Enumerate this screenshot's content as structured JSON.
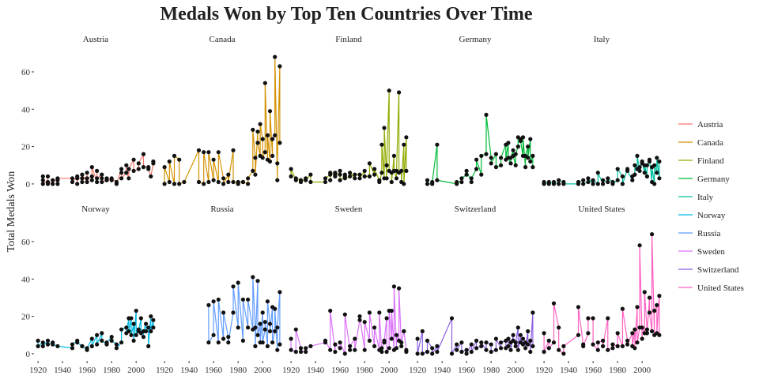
{
  "chart_data": {
    "type": "line",
    "title": "Medals Won by Top Ten Countries Over Time",
    "xlabel": "",
    "ylabel": "Total Medals Won",
    "x_ticks": [
      1920,
      1940,
      1960,
      1980,
      2000
    ],
    "y_ticks": [
      0,
      20,
      40,
      60
    ],
    "xlim": [
      1918,
      2016
    ],
    "ylim": [
      -3,
      71
    ],
    "grid": false,
    "legend_position": "right",
    "facet_layout": {
      "rows": 2,
      "cols": 5
    },
    "series": [
      {
        "name": "Austria",
        "color": "#F8766D",
        "x": [
          1924,
          1924,
          1924,
          1928,
          1928,
          1928,
          1932,
          1932,
          1936,
          1936,
          1936,
          1948,
          1948,
          1952,
          1952,
          1952,
          1956,
          1956,
          1956,
          1960,
          1960,
          1960,
          1964,
          1964,
          1964,
          1968,
          1968,
          1968,
          1972,
          1972,
          1972,
          1976,
          1976,
          1976,
          1980,
          1980,
          1984,
          1984,
          1988,
          1988,
          1988,
          1992,
          1992,
          1992,
          1994,
          1994,
          1998,
          1998,
          2002,
          2002,
          2006,
          2006,
          2010,
          2010,
          2012,
          2014,
          2014
        ],
        "y": [
          4,
          0,
          2,
          0,
          4,
          1,
          0,
          2,
          2,
          0,
          3,
          3,
          1,
          4,
          0,
          3,
          3,
          1,
          5,
          1,
          6,
          3,
          4,
          2,
          9,
          1,
          7,
          3,
          5,
          3,
          1,
          2,
          2,
          3,
          2,
          3,
          1,
          0,
          8,
          6,
          3,
          6,
          10,
          6,
          3,
          8,
          13,
          7,
          8,
          11,
          16,
          9,
          9,
          8,
          4,
          11,
          12
        ]
      },
      {
        "name": "Canada",
        "color": "#D39200",
        "x": [
          1920,
          1920,
          1924,
          1924,
          1928,
          1928,
          1932,
          1932,
          1936,
          1948,
          1948,
          1952,
          1952,
          1956,
          1956,
          1960,
          1960,
          1964,
          1964,
          1968,
          1968,
          1972,
          1972,
          1976,
          1976,
          1980,
          1980,
          1984,
          1984,
          1988,
          1988,
          1992,
          1992,
          1994,
          1994,
          1996,
          1996,
          1998,
          1998,
          2000,
          2000,
          2002,
          2002,
          2004,
          2004,
          2006,
          2006,
          2008,
          2008,
          2010,
          2010,
          2012,
          2012,
          2014,
          2014
        ],
        "y": [
          0,
          9,
          1,
          12,
          0,
          15,
          13,
          0,
          1,
          18,
          1,
          0,
          17,
          1,
          17,
          2,
          13,
          1,
          17,
          3,
          0,
          5,
          1,
          18,
          1,
          0,
          1,
          1,
          1,
          0,
          3,
          7,
          29,
          14,
          5,
          28,
          22,
          15,
          32,
          24,
          14,
          17,
          54,
          13,
          26,
          12,
          39,
          15,
          24,
          26,
          68,
          2,
          11,
          63,
          22
        ]
      },
      {
        "name": "Finland",
        "color": "#93AA00",
        "x": [
          1920,
          1920,
          1924,
          1924,
          1928,
          1928,
          1932,
          1932,
          1936,
          1936,
          1948,
          1948,
          1952,
          1952,
          1952,
          1956,
          1956,
          1956,
          1960,
          1960,
          1960,
          1964,
          1964,
          1964,
          1968,
          1968,
          1972,
          1972,
          1976,
          1976,
          1980,
          1980,
          1984,
          1984,
          1988,
          1988,
          1992,
          1992,
          1994,
          1994,
          1996,
          1996,
          1998,
          1998,
          2000,
          2000,
          2002,
          2002,
          2004,
          2004,
          2006,
          2006,
          2008,
          2008,
          2010,
          2010,
          2012,
          2012,
          2014,
          2014
        ],
        "y": [
          4,
          8,
          2,
          3,
          2,
          1,
          3,
          2,
          5,
          1,
          1,
          3,
          5,
          2,
          6,
          5,
          4,
          6,
          5,
          7,
          2,
          4,
          5,
          3,
          4,
          6,
          3,
          5,
          5,
          3,
          7,
          4,
          4,
          11,
          5,
          8,
          2,
          1,
          6,
          21,
          3,
          30,
          3,
          10,
          50,
          7,
          6,
          1,
          15,
          7,
          3,
          7,
          49,
          6,
          7,
          1,
          21,
          0,
          25,
          7
        ]
      },
      {
        "name": "Germany",
        "color": "#00BA38",
        "x": [
          1928,
          1928,
          1932,
          1932,
          1936,
          1936,
          1952,
          1952,
          1956,
          1956,
          1960,
          1960,
          1964,
          1964,
          1968,
          1968,
          1972,
          1972,
          1976,
          1976,
          1980,
          1980,
          1984,
          1984,
          1988,
          1988,
          1992,
          1992,
          1994,
          1994,
          1996,
          1996,
          1998,
          1998,
          2000,
          2000,
          2002,
          2002,
          2004,
          2004,
          2006,
          2006,
          2008,
          2008,
          2010,
          2010,
          2012,
          2012,
          2014,
          2014
        ],
        "y": [
          2,
          0,
          0,
          1,
          21,
          2,
          0,
          1,
          1,
          3,
          5,
          7,
          1,
          3,
          8,
          13,
          5,
          15,
          16,
          37,
          14,
          11,
          16,
          9,
          10,
          14,
          21,
          13,
          22,
          14,
          11,
          14,
          18,
          15,
          10,
          16,
          20,
          25,
          24,
          23,
          15,
          25,
          9,
          15,
          20,
          14,
          24,
          12,
          15,
          9
        ]
      },
      {
        "name": "Italy",
        "color": "#00C19F",
        "x": [
          1920,
          1920,
          1924,
          1924,
          1928,
          1928,
          1932,
          1932,
          1936,
          1936,
          1948,
          1948,
          1952,
          1952,
          1956,
          1956,
          1960,
          1960,
          1964,
          1964,
          1968,
          1968,
          1972,
          1972,
          1976,
          1976,
          1980,
          1980,
          1984,
          1984,
          1988,
          1988,
          1992,
          1992,
          1994,
          1994,
          1996,
          1996,
          1998,
          1998,
          2000,
          2000,
          2002,
          2002,
          2004,
          2004,
          2006,
          2006,
          2008,
          2008,
          2010,
          2010,
          2012,
          2012,
          2014,
          2014
        ],
        "y": [
          0,
          1,
          0,
          1,
          0,
          1,
          0,
          2,
          1,
          0,
          0,
          1,
          2,
          0,
          1,
          3,
          0,
          2,
          0,
          6,
          0,
          2,
          1,
          3,
          1,
          0,
          2,
          8,
          4,
          0,
          8,
          7,
          2,
          4,
          5,
          10,
          8,
          15,
          7,
          9,
          11,
          12,
          6,
          10,
          4,
          10,
          12,
          13,
          1,
          9,
          0,
          10,
          6,
          14,
          3,
          12
        ]
      },
      {
        "name": "Norway",
        "color": "#00B9E3",
        "x": [
          1920,
          1920,
          1924,
          1924,
          1928,
          1928,
          1932,
          1932,
          1936,
          1948,
          1948,
          1952,
          1952,
          1956,
          1956,
          1960,
          1960,
          1964,
          1964,
          1968,
          1968,
          1972,
          1972,
          1976,
          1976,
          1980,
          1980,
          1984,
          1984,
          1988,
          1988,
          1992,
          1992,
          1994,
          1994,
          1996,
          1996,
          1998,
          1998,
          2000,
          2000,
          2002,
          2002,
          2004,
          2004,
          2006,
          2006,
          2008,
          2008,
          2010,
          2010,
          2012,
          2012,
          2014,
          2014
        ],
        "y": [
          7,
          4,
          6,
          4,
          7,
          5,
          6,
          5,
          4,
          3,
          5,
          7,
          6,
          4,
          4,
          2,
          3,
          8,
          4,
          10,
          5,
          11,
          7,
          5,
          6,
          9,
          7,
          5,
          3,
          6,
          13,
          14,
          11,
          19,
          12,
          19,
          10,
          16,
          7,
          23,
          10,
          13,
          12,
          19,
          11,
          9,
          12,
          16,
          12,
          14,
          4,
          20,
          12,
          18,
          14
        ]
      },
      {
        "name": "Russia",
        "color": "#619CFF",
        "x": [
          1956,
          1956,
          1960,
          1960,
          1964,
          1964,
          1968,
          1968,
          1972,
          1972,
          1976,
          1976,
          1980,
          1980,
          1984,
          1984,
          1988,
          1988,
          1992,
          1992,
          1994,
          1994,
          1996,
          1996,
          1998,
          1998,
          2000,
          2000,
          2002,
          2002,
          2004,
          2004,
          2006,
          2006,
          2008,
          2008,
          2010,
          2010,
          2012,
          2012,
          2014,
          2014
        ],
        "y": [
          26,
          6,
          10,
          28,
          6,
          29,
          8,
          22,
          9,
          6,
          22,
          36,
          14,
          38,
          7,
          29,
          14,
          29,
          13,
          41,
          14,
          4,
          39,
          10,
          16,
          6,
          22,
          6,
          13,
          17,
          4,
          28,
          16,
          12,
          25,
          6,
          12,
          24,
          2,
          14,
          33,
          5
        ]
      },
      {
        "name": "Sweden",
        "color": "#DB72FB",
        "x": [
          1920,
          1920,
          1924,
          1924,
          1928,
          1928,
          1932,
          1932,
          1936,
          1948,
          1948,
          1952,
          1952,
          1956,
          1956,
          1960,
          1960,
          1964,
          1964,
          1968,
          1968,
          1972,
          1972,
          1976,
          1976,
          1980,
          1980,
          1984,
          1984,
          1988,
          1988,
          1992,
          1992,
          1994,
          1994,
          1996,
          1996,
          1998,
          1998,
          2000,
          2000,
          2002,
          2002,
          2004,
          2004,
          2006,
          2006,
          2008,
          2008,
          2010,
          2010,
          2012,
          2012,
          2014,
          2014
        ],
        "y": [
          8,
          2,
          1,
          13,
          3,
          1,
          1,
          3,
          4,
          6,
          7,
          2,
          23,
          1,
          5,
          3,
          6,
          0,
          21,
          2,
          4,
          8,
          2,
          18,
          20,
          2,
          17,
          7,
          22,
          4,
          14,
          2,
          22,
          1,
          3,
          6,
          7,
          19,
          1,
          3,
          23,
          8,
          23,
          2,
          36,
          3,
          10,
          7,
          35,
          4,
          6,
          12,
          12,
          2,
          1
        ]
      },
      {
        "name": "Switzerland",
        "color": "#8A5FE0",
        "x": [
          1920,
          1920,
          1924,
          1924,
          1928,
          1928,
          1932,
          1932,
          1936,
          1936,
          1948,
          1948,
          1952,
          1952,
          1956,
          1956,
          1960,
          1960,
          1964,
          1964,
          1968,
          1968,
          1972,
          1972,
          1976,
          1976,
          1980,
          1980,
          1984,
          1984,
          1988,
          1988,
          1992,
          1992,
          1994,
          1994,
          1996,
          1996,
          1998,
          1998,
          2000,
          2000,
          2002,
          2002,
          2004,
          2004,
          2006,
          2006,
          2008,
          2008,
          2010,
          2010,
          2012,
          2012,
          2014,
          2014
        ],
        "y": [
          8,
          0,
          12,
          0,
          1,
          7,
          3,
          0,
          4,
          1,
          19,
          0,
          5,
          2,
          6,
          1,
          2,
          0,
          5,
          1,
          7,
          3,
          4,
          6,
          2,
          6,
          5,
          1,
          2,
          8,
          3,
          6,
          7,
          3,
          4,
          8,
          6,
          2,
          10,
          7,
          4,
          6,
          14,
          2,
          10,
          6,
          8,
          5,
          6,
          3,
          12,
          5,
          7,
          1,
          22,
          4
        ]
      },
      {
        "name": "United States",
        "color": "#FF61C3",
        "x": [
          1920,
          1920,
          1924,
          1924,
          1928,
          1928,
          1932,
          1932,
          1936,
          1936,
          1948,
          1948,
          1952,
          1952,
          1956,
          1956,
          1960,
          1960,
          1964,
          1964,
          1968,
          1968,
          1972,
          1972,
          1976,
          1976,
          1980,
          1980,
          1984,
          1984,
          1988,
          1988,
          1992,
          1992,
          1994,
          1994,
          1996,
          1996,
          1998,
          1998,
          2000,
          2000,
          2002,
          2002,
          2004,
          2004,
          2006,
          2006,
          2008,
          2008,
          2010,
          2010,
          2012,
          2012,
          2014,
          2014
        ],
        "y": [
          11,
          1,
          7,
          3,
          6,
          27,
          14,
          2,
          0,
          4,
          10,
          25,
          5,
          4,
          11,
          19,
          19,
          5,
          2,
          6,
          7,
          4,
          19,
          2,
          3,
          5,
          4,
          11,
          4,
          24,
          7,
          5,
          11,
          4,
          13,
          3,
          25,
          6,
          14,
          58,
          8,
          14,
          11,
          33,
          13,
          11,
          30,
          22,
          12,
          64,
          10,
          23,
          26,
          11,
          31,
          10
        ]
      }
    ]
  }
}
